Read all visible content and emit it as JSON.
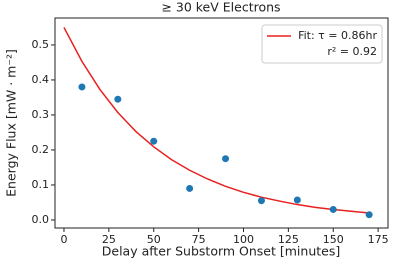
{
  "chart_data": {
    "type": "scatter",
    "title": "≥ 30 keV Electrons",
    "x_label": "Delay after Substorm Onset [minutes]",
    "y_label": "Energy Flux [mW · m⁻²]",
    "xlim": [
      -5,
      180.5
    ],
    "ylim": [
      -0.023,
      0.577
    ],
    "xticks": [
      0,
      25,
      50,
      75,
      100,
      125,
      150,
      175
    ],
    "yticks": [
      {
        "value": 0,
        "label": "0.0"
      },
      0.1,
      0.2,
      0.3,
      0.4,
      0.5
    ],
    "legend": "upper right",
    "series": [
      {
        "name": "Fit: τ = 0.86hr",
        "type": "line",
        "color": "#e8201f",
        "x": [
          0,
          10,
          20,
          30,
          40,
          50,
          60,
          70,
          80,
          90,
          100,
          110,
          120,
          130,
          140,
          150,
          160,
          170
        ],
        "values": [
          0.55,
          0.453,
          0.373,
          0.307,
          0.253,
          0.209,
          0.172,
          0.142,
          0.117,
          0.096,
          0.079,
          0.065,
          0.054,
          0.044,
          0.036,
          0.03,
          0.025,
          0.02
        ]
      },
      {
        "type": "scatter",
        "color": "#1f77b4",
        "x": [
          10,
          30,
          50,
          70,
          90,
          110,
          130,
          150,
          170
        ],
        "values": [
          0.38,
          0.345,
          0.225,
          0.09,
          0.175,
          0.055,
          0.057,
          0.03,
          0.015
        ]
      }
    ],
    "legend_note": "r² = 0.92"
  }
}
